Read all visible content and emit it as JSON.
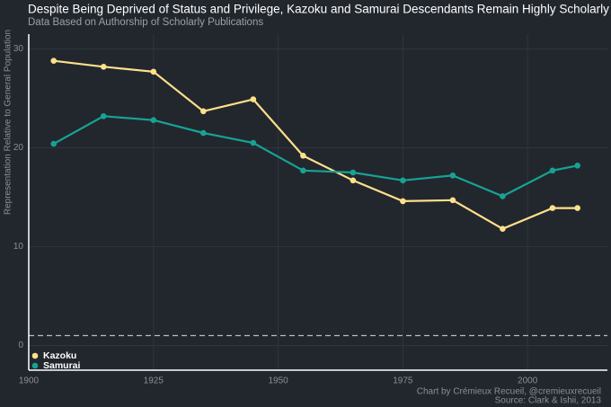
{
  "chart_data": {
    "type": "line",
    "title": "Despite Being Deprived of Status and Privilege, Kazoku and Samurai Descendants Remain Highly Scholarly",
    "subtitle": "Data Based on Authorship of Scholarly Publications",
    "y_label": "Representation Relative to General Population",
    "credit": "Chart by Crémieux Recueil, @cremieuxrecueil",
    "source": "Source: Clark & Ishii, 2013",
    "x": [
      1905,
      1915,
      1925,
      1935,
      1945,
      1955,
      1965,
      1975,
      1985,
      1995,
      2005,
      2010
    ],
    "series": [
      {
        "name": "Kazoku",
        "color": "#ffe08a",
        "values": [
          28.8,
          28.2,
          27.7,
          23.7,
          24.9,
          19.2,
          16.7,
          14.6,
          14.7,
          11.8,
          13.9,
          13.9
        ]
      },
      {
        "name": "Samurai",
        "color": "#17a394",
        "values": [
          20.4,
          23.2,
          22.8,
          21.5,
          20.5,
          17.7,
          17.5,
          16.7,
          17.2,
          15.1,
          17.7,
          18.2
        ]
      }
    ],
    "xlim": [
      1900,
      2016
    ],
    "xticks": [
      1900,
      1925,
      1950,
      1975,
      2000
    ],
    "ylim": [
      -2.5,
      31.5
    ],
    "yticks": [
      0,
      10,
      20,
      30
    ],
    "reference_line": 1,
    "grid": true,
    "legend": "bottom-left"
  }
}
